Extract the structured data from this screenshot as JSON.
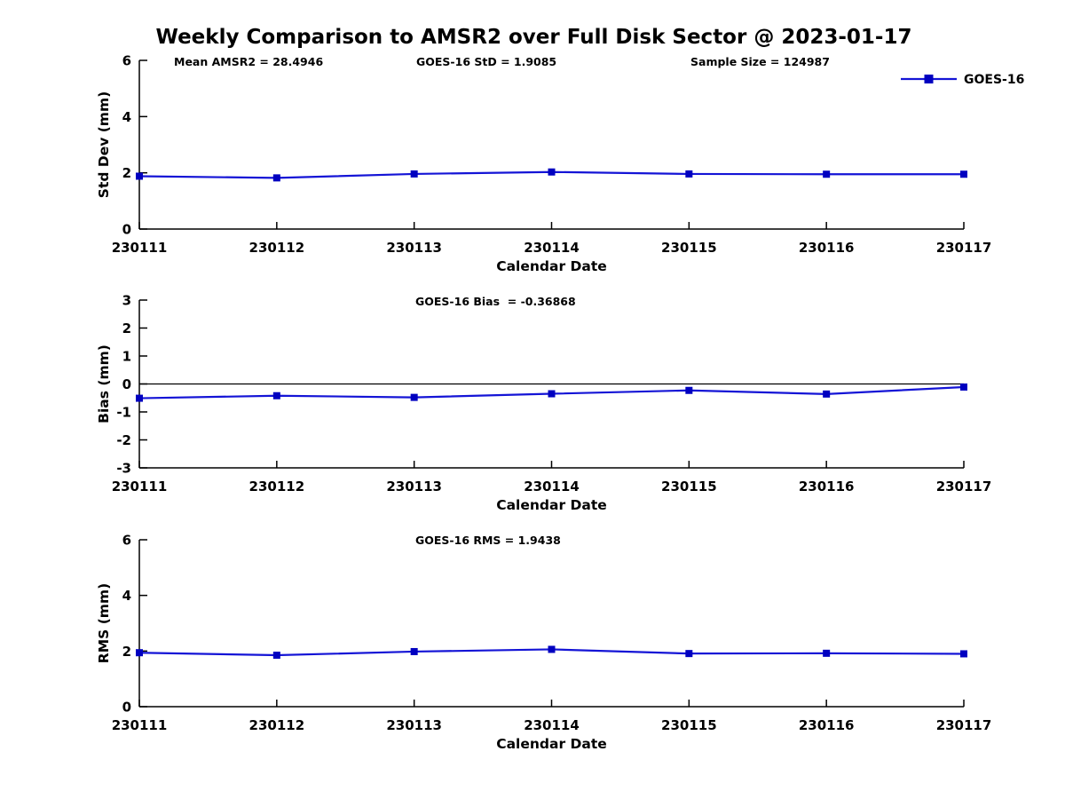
{
  "title": "Weekly Comparison to AMSR2 over Full Disk Sector @ 2023-01-17",
  "legend": {
    "label": "GOES-16"
  },
  "colors": {
    "line": "#1414d6",
    "marker": "#0000c0",
    "axis": "#000000",
    "text": "#000000",
    "background": "#ffffff"
  },
  "chart_data": {
    "type": "line",
    "x_categories": [
      "230111",
      "230112",
      "230113",
      "230114",
      "230115",
      "230116",
      "230117"
    ],
    "xlabel": "Calendar Date",
    "legend_position": "top-right",
    "grid": false,
    "subplots": [
      {
        "id": "std-dev",
        "ylabel": "Std Dev (mm)",
        "ylim": [
          0,
          6
        ],
        "yticks": [
          0,
          2,
          4,
          6
        ],
        "zero_line": false,
        "annotations": [
          "Mean AMSR2 = 28.4946",
          "GOES-16 StD = 1.9085",
          "Sample Size = 124987"
        ],
        "series": [
          {
            "name": "GOES-16",
            "values": [
              1.88,
              1.82,
              1.96,
              2.03,
              1.96,
              1.95,
              1.95
            ]
          }
        ]
      },
      {
        "id": "bias",
        "ylabel": "Bias (mm)",
        "ylim": [
          -3,
          3
        ],
        "yticks": [
          -3,
          -2,
          -1,
          0,
          1,
          2,
          3
        ],
        "zero_line": true,
        "annotations": [
          "GOES-16 Bias  = -0.36868"
        ],
        "series": [
          {
            "name": "GOES-16",
            "values": [
              -0.51,
              -0.42,
              -0.48,
              -0.35,
              -0.23,
              -0.36,
              -0.11
            ]
          }
        ]
      },
      {
        "id": "rms",
        "ylabel": "RMS (mm)",
        "ylim": [
          0,
          6
        ],
        "yticks": [
          0,
          2,
          4,
          6
        ],
        "zero_line": false,
        "annotations": [
          "GOES-16 RMS = 1.9438"
        ],
        "series": [
          {
            "name": "GOES-16",
            "values": [
              1.94,
              1.85,
              1.98,
              2.06,
              1.91,
              1.92,
              1.9
            ]
          }
        ]
      }
    ]
  }
}
